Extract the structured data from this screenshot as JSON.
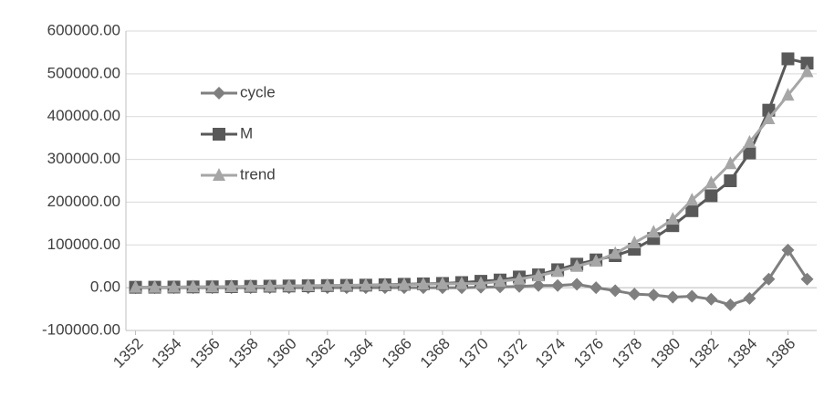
{
  "chart_data": {
    "type": "line",
    "x": [
      1352,
      1353,
      1354,
      1355,
      1356,
      1357,
      1358,
      1359,
      1360,
      1361,
      1362,
      1363,
      1364,
      1365,
      1366,
      1367,
      1368,
      1369,
      1370,
      1371,
      1372,
      1373,
      1374,
      1375,
      1376,
      1377,
      1378,
      1379,
      1380,
      1381,
      1382,
      1383,
      1384,
      1385,
      1386,
      1387
    ],
    "xlim": [
      1351.5,
      1387.5
    ],
    "xticks": [
      1352,
      1354,
      1356,
      1358,
      1360,
      1362,
      1364,
      1366,
      1368,
      1370,
      1372,
      1374,
      1376,
      1378,
      1380,
      1382,
      1384,
      1386
    ],
    "ylim": [
      -100000,
      600000
    ],
    "yticks": [
      {
        "value": -100000,
        "label": "-100000.00"
      },
      {
        "value": 0,
        "label": "0.00"
      },
      {
        "value": 100000,
        "label": "100000.00"
      },
      {
        "value": 200000,
        "label": "200000.00"
      },
      {
        "value": 300000,
        "label": "300000.00"
      },
      {
        "value": 400000,
        "label": "400000.00"
      },
      {
        "value": 500000,
        "label": "500000.00"
      },
      {
        "value": 600000,
        "label": "600000.00"
      }
    ],
    "grid": true,
    "legend": "center-left",
    "series": [
      {
        "name": "cycle",
        "color": "#7f7f7f",
        "marker": "diamond",
        "values": [
          0,
          0,
          0,
          0,
          0,
          0,
          0,
          0,
          0,
          0,
          0,
          0,
          0,
          0,
          0,
          0,
          0,
          0,
          1000,
          2000,
          3000,
          5000,
          5000,
          8000,
          0,
          -7000,
          -15000,
          -17000,
          -22000,
          -20000,
          -27000,
          -40000,
          -25000,
          20000,
          88000,
          20000
        ]
      },
      {
        "name": "M",
        "color": "#595959",
        "marker": "square",
        "values": [
          1000,
          1200,
          1500,
          1800,
          2000,
          2500,
          3000,
          3500,
          4000,
          4500,
          5000,
          5500,
          6000,
          7000,
          8000,
          9000,
          10000,
          12000,
          15000,
          18000,
          25000,
          30000,
          42000,
          55000,
          65000,
          75000,
          90000,
          115000,
          145000,
          180000,
          215000,
          250000,
          315000,
          415000,
          535000,
          525000
        ]
      },
      {
        "name": "trend",
        "color": "#a6a6a6",
        "marker": "triangle",
        "values": [
          1000,
          1200,
          1500,
          1800,
          2000,
          2500,
          3000,
          3500,
          4000,
          4500,
          5000,
          5500,
          6000,
          6500,
          7000,
          8000,
          9000,
          9500,
          10000,
          15000,
          20000,
          28000,
          38000,
          50000,
          62000,
          80000,
          105000,
          130000,
          160000,
          205000,
          245000,
          290000,
          340000,
          395000,
          450000,
          505000
        ]
      }
    ]
  }
}
